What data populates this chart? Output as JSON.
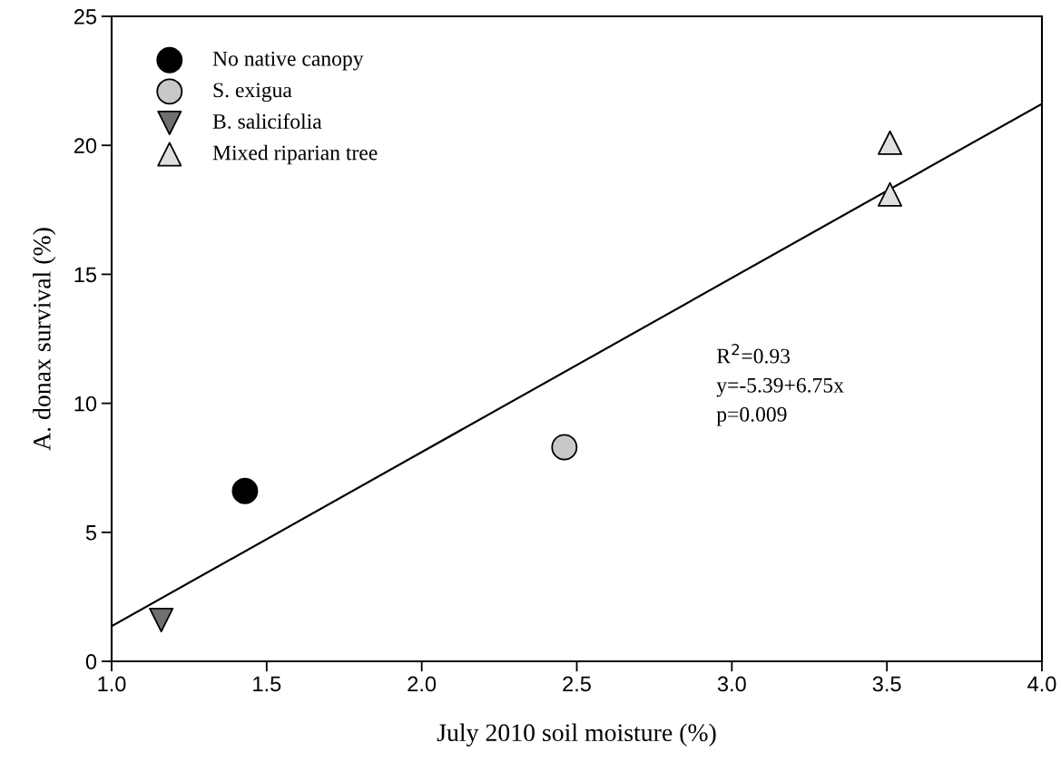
{
  "chart_data": {
    "type": "scatter",
    "xlabel": "July 2010 soil moisture (%)",
    "ylabel": "A. donax survival (%)",
    "xlim": [
      1.0,
      4.0
    ],
    "xticks": [
      {
        "value": 1.0,
        "label": "1.0"
      },
      {
        "value": 1.5,
        "label": "1.5"
      },
      {
        "value": 2.0,
        "label": "2.0"
      },
      {
        "value": 2.5,
        "label": "2.5"
      },
      {
        "value": 3.0,
        "label": "3.0"
      },
      {
        "value": 3.5,
        "label": "3.5"
      },
      {
        "value": 4.0,
        "label": "4.0"
      }
    ],
    "ylim": [
      0,
      25
    ],
    "yticks": [
      0,
      5,
      10,
      15,
      20,
      25
    ],
    "grid": false,
    "legend": "top left",
    "series": [
      {
        "name": "No native canopy",
        "color": "#000000",
        "marker": "circle",
        "x": [
          1.43
        ],
        "values": [
          6.6
        ]
      },
      {
        "name": "S. exigua",
        "color": "#c8c8c8",
        "marker": "circle",
        "x": [
          2.46
        ],
        "values": [
          8.3
        ]
      },
      {
        "name": "B. salicifolia",
        "color": "#707070",
        "marker": "triangle_down",
        "x": [
          1.16
        ],
        "values": [
          1.6
        ]
      },
      {
        "name": "Mixed riparian tree",
        "color": "#e0e0e0",
        "marker": "triangle",
        "x": [
          3.51,
          3.51
        ],
        "values": [
          20.1,
          18.1
        ]
      },
      {
        "type": "line",
        "color": "#000000",
        "marker": "none",
        "x": [
          1.0,
          4.0
        ],
        "values": [
          1.36,
          21.61
        ]
      }
    ],
    "annotations": [
      "R$^{2}$=0.93",
      "y=-5.39+6.75x",
      "p=0.009"
    ]
  }
}
